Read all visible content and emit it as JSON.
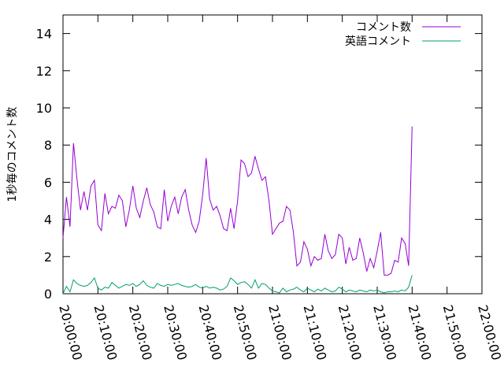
{
  "chart_data": {
    "type": "line",
    "title": "",
    "xlabel": "",
    "ylabel": "1秒毎のコメント数",
    "xlim": [
      "20:00:00",
      "22:00:00"
    ],
    "ylim": [
      0,
      15
    ],
    "x_tick_labels": [
      "20:00:00",
      "20:10:00",
      "20:20:00",
      "20:30:00",
      "20:40:00",
      "20:50:00",
      "21:00:00",
      "21:10:00",
      "21:20:00",
      "21:30:00",
      "21:40:00",
      "21:50:00",
      "22:00:00"
    ],
    "y_ticks": [
      0,
      2,
      4,
      6,
      8,
      10,
      12,
      14
    ],
    "grid": false,
    "legend_position": "top-right",
    "series": [
      {
        "name": "コメント数",
        "color": "#9400d3",
        "points": [
          [
            "20:00:00",
            3.0
          ],
          [
            "20:01:00",
            5.2
          ],
          [
            "20:02:00",
            3.6
          ],
          [
            "20:03:00",
            8.1
          ],
          [
            "20:04:00",
            6.2
          ],
          [
            "20:05:00",
            4.5
          ],
          [
            "20:06:00",
            5.5
          ],
          [
            "20:07:00",
            4.5
          ],
          [
            "20:08:00",
            5.8
          ],
          [
            "20:09:00",
            6.1
          ],
          [
            "20:10:00",
            3.7
          ],
          [
            "20:11:00",
            3.4
          ],
          [
            "20:12:00",
            5.4
          ],
          [
            "20:13:00",
            4.3
          ],
          [
            "20:14:00",
            4.7
          ],
          [
            "20:15:00",
            4.6
          ],
          [
            "20:16:00",
            5.3
          ],
          [
            "20:17:00",
            5.0
          ],
          [
            "20:18:00",
            3.6
          ],
          [
            "20:19:00",
            4.5
          ],
          [
            "20:20:00",
            5.8
          ],
          [
            "20:21:00",
            4.6
          ],
          [
            "20:22:00",
            4.1
          ],
          [
            "20:23:00",
            5.0
          ],
          [
            "20:24:00",
            5.7
          ],
          [
            "20:25:00",
            4.8
          ],
          [
            "20:26:00",
            4.4
          ],
          [
            "20:27:00",
            3.6
          ],
          [
            "20:28:00",
            3.5
          ],
          [
            "20:29:00",
            5.6
          ],
          [
            "20:30:00",
            3.9
          ],
          [
            "20:31:00",
            4.7
          ],
          [
            "20:32:00",
            5.2
          ],
          [
            "20:33:00",
            4.3
          ],
          [
            "20:34:00",
            5.2
          ],
          [
            "20:35:00",
            5.6
          ],
          [
            "20:36:00",
            4.5
          ],
          [
            "20:37:00",
            3.7
          ],
          [
            "20:38:00",
            3.3
          ],
          [
            "20:39:00",
            3.9
          ],
          [
            "20:40:00",
            5.3
          ],
          [
            "20:41:00",
            7.3
          ],
          [
            "20:42:00",
            5.1
          ],
          [
            "20:43:00",
            4.5
          ],
          [
            "20:44:00",
            4.7
          ],
          [
            "20:45:00",
            4.2
          ],
          [
            "20:46:00",
            3.5
          ],
          [
            "20:47:00",
            3.4
          ],
          [
            "20:48:00",
            4.6
          ],
          [
            "20:49:00",
            3.5
          ],
          [
            "20:50:00",
            5.0
          ],
          [
            "20:51:00",
            7.2
          ],
          [
            "20:52:00",
            7.0
          ],
          [
            "20:53:00",
            6.3
          ],
          [
            "20:54:00",
            6.5
          ],
          [
            "20:55:00",
            7.4
          ],
          [
            "20:56:00",
            6.7
          ],
          [
            "20:57:00",
            6.1
          ],
          [
            "20:58:00",
            6.3
          ],
          [
            "20:59:00",
            5.0
          ],
          [
            "21:00:00",
            3.2
          ],
          [
            "21:01:00",
            3.5
          ],
          [
            "21:02:00",
            3.8
          ],
          [
            "21:03:00",
            3.9
          ],
          [
            "21:04:00",
            4.7
          ],
          [
            "21:05:00",
            4.5
          ],
          [
            "21:06:00",
            3.3
          ],
          [
            "21:07:00",
            1.5
          ],
          [
            "21:08:00",
            1.7
          ],
          [
            "21:09:00",
            2.8
          ],
          [
            "21:10:00",
            2.4
          ],
          [
            "21:11:00",
            1.5
          ],
          [
            "21:12:00",
            2.0
          ],
          [
            "21:13:00",
            1.8
          ],
          [
            "21:14:00",
            1.9
          ],
          [
            "21:15:00",
            3.2
          ],
          [
            "21:16:00",
            2.3
          ],
          [
            "21:17:00",
            1.9
          ],
          [
            "21:18:00",
            2.1
          ],
          [
            "21:19:00",
            3.2
          ],
          [
            "21:20:00",
            3.0
          ],
          [
            "21:21:00",
            1.6
          ],
          [
            "21:22:00",
            2.5
          ],
          [
            "21:23:00",
            1.8
          ],
          [
            "21:24:00",
            1.9
          ],
          [
            "21:25:00",
            3.0
          ],
          [
            "21:26:00",
            2.2
          ],
          [
            "21:27:00",
            1.2
          ],
          [
            "21:28:00",
            1.9
          ],
          [
            "21:29:00",
            1.4
          ],
          [
            "21:30:00",
            2.3
          ],
          [
            "21:31:00",
            3.3
          ],
          [
            "21:32:00",
            1.0
          ],
          [
            "21:33:00",
            1.0
          ],
          [
            "21:34:00",
            1.1
          ],
          [
            "21:35:00",
            1.8
          ],
          [
            "21:36:00",
            1.7
          ],
          [
            "21:37:00",
            3.0
          ],
          [
            "21:38:00",
            2.7
          ],
          [
            "21:39:00",
            1.5
          ],
          [
            "21:40:00",
            9.0
          ]
        ]
      },
      {
        "name": "英語コメント",
        "color": "#009e73",
        "points": [
          [
            "20:00:00",
            0.0
          ],
          [
            "20:01:00",
            0.4
          ],
          [
            "20:02:00",
            0.1
          ],
          [
            "20:03:00",
            0.75
          ],
          [
            "20:04:00",
            0.55
          ],
          [
            "20:05:00",
            0.45
          ],
          [
            "20:06:00",
            0.4
          ],
          [
            "20:07:00",
            0.45
          ],
          [
            "20:08:00",
            0.6
          ],
          [
            "20:09:00",
            0.85
          ],
          [
            "20:10:00",
            0.3
          ],
          [
            "20:11:00",
            0.2
          ],
          [
            "20:12:00",
            0.35
          ],
          [
            "20:13:00",
            0.3
          ],
          [
            "20:14:00",
            0.6
          ],
          [
            "20:15:00",
            0.45
          ],
          [
            "20:16:00",
            0.3
          ],
          [
            "20:17:00",
            0.4
          ],
          [
            "20:18:00",
            0.5
          ],
          [
            "20:19:00",
            0.45
          ],
          [
            "20:20:00",
            0.55
          ],
          [
            "20:21:00",
            0.4
          ],
          [
            "20:22:00",
            0.5
          ],
          [
            "20:23:00",
            0.7
          ],
          [
            "20:24:00",
            0.45
          ],
          [
            "20:25:00",
            0.35
          ],
          [
            "20:26:00",
            0.3
          ],
          [
            "20:27:00",
            0.55
          ],
          [
            "20:28:00",
            0.45
          ],
          [
            "20:29:00",
            0.4
          ],
          [
            "20:30:00",
            0.5
          ],
          [
            "20:31:00",
            0.45
          ],
          [
            "20:32:00",
            0.5
          ],
          [
            "20:33:00",
            0.55
          ],
          [
            "20:34:00",
            0.45
          ],
          [
            "20:35:00",
            0.4
          ],
          [
            "20:36:00",
            0.35
          ],
          [
            "20:37:00",
            0.4
          ],
          [
            "20:38:00",
            0.5
          ],
          [
            "20:39:00",
            0.35
          ],
          [
            "20:40:00",
            0.3
          ],
          [
            "20:41:00",
            0.4
          ],
          [
            "20:42:00",
            0.3
          ],
          [
            "20:43:00",
            0.35
          ],
          [
            "20:44:00",
            0.3
          ],
          [
            "20:45:00",
            0.2
          ],
          [
            "20:46:00",
            0.25
          ],
          [
            "20:47:00",
            0.4
          ],
          [
            "20:48:00",
            0.85
          ],
          [
            "20:49:00",
            0.7
          ],
          [
            "20:50:00",
            0.5
          ],
          [
            "20:51:00",
            0.6
          ],
          [
            "20:52:00",
            0.65
          ],
          [
            "20:53:00",
            0.5
          ],
          [
            "20:54:00",
            0.3
          ],
          [
            "20:55:00",
            0.75
          ],
          [
            "20:56:00",
            0.3
          ],
          [
            "20:57:00",
            0.55
          ],
          [
            "20:58:00",
            0.5
          ],
          [
            "20:59:00",
            0.3
          ],
          [
            "21:00:00",
            0.15
          ],
          [
            "21:01:00",
            0.1
          ],
          [
            "21:02:00",
            0.05
          ],
          [
            "21:03:00",
            0.3
          ],
          [
            "21:04:00",
            0.1
          ],
          [
            "21:05:00",
            0.2
          ],
          [
            "21:06:00",
            0.25
          ],
          [
            "21:07:00",
            0.35
          ],
          [
            "21:08:00",
            0.2
          ],
          [
            "21:09:00",
            0.1
          ],
          [
            "21:10:00",
            0.3
          ],
          [
            "21:11:00",
            0.2
          ],
          [
            "21:12:00",
            0.1
          ],
          [
            "21:13:00",
            0.25
          ],
          [
            "21:14:00",
            0.15
          ],
          [
            "21:15:00",
            0.3
          ],
          [
            "21:16:00",
            0.2
          ],
          [
            "21:17:00",
            0.1
          ],
          [
            "21:18:00",
            0.15
          ],
          [
            "21:19:00",
            0.35
          ],
          [
            "21:20:00",
            0.25
          ],
          [
            "21:21:00",
            0.1
          ],
          [
            "21:22:00",
            0.2
          ],
          [
            "21:23:00",
            0.15
          ],
          [
            "21:24:00",
            0.1
          ],
          [
            "21:25:00",
            0.2
          ],
          [
            "21:26:00",
            0.15
          ],
          [
            "21:27:00",
            0.1
          ],
          [
            "21:28:00",
            0.2
          ],
          [
            "21:29:00",
            0.15
          ],
          [
            "21:30:00",
            0.2
          ],
          [
            "21:31:00",
            0.1
          ],
          [
            "21:32:00",
            0.05
          ],
          [
            "21:33:00",
            0.1
          ],
          [
            "21:34:00",
            0.1
          ],
          [
            "21:35:00",
            0.15
          ],
          [
            "21:36:00",
            0.1
          ],
          [
            "21:37:00",
            0.2
          ],
          [
            "21:38:00",
            0.15
          ],
          [
            "21:39:00",
            0.35
          ],
          [
            "21:40:00",
            1.0
          ]
        ]
      }
    ]
  }
}
